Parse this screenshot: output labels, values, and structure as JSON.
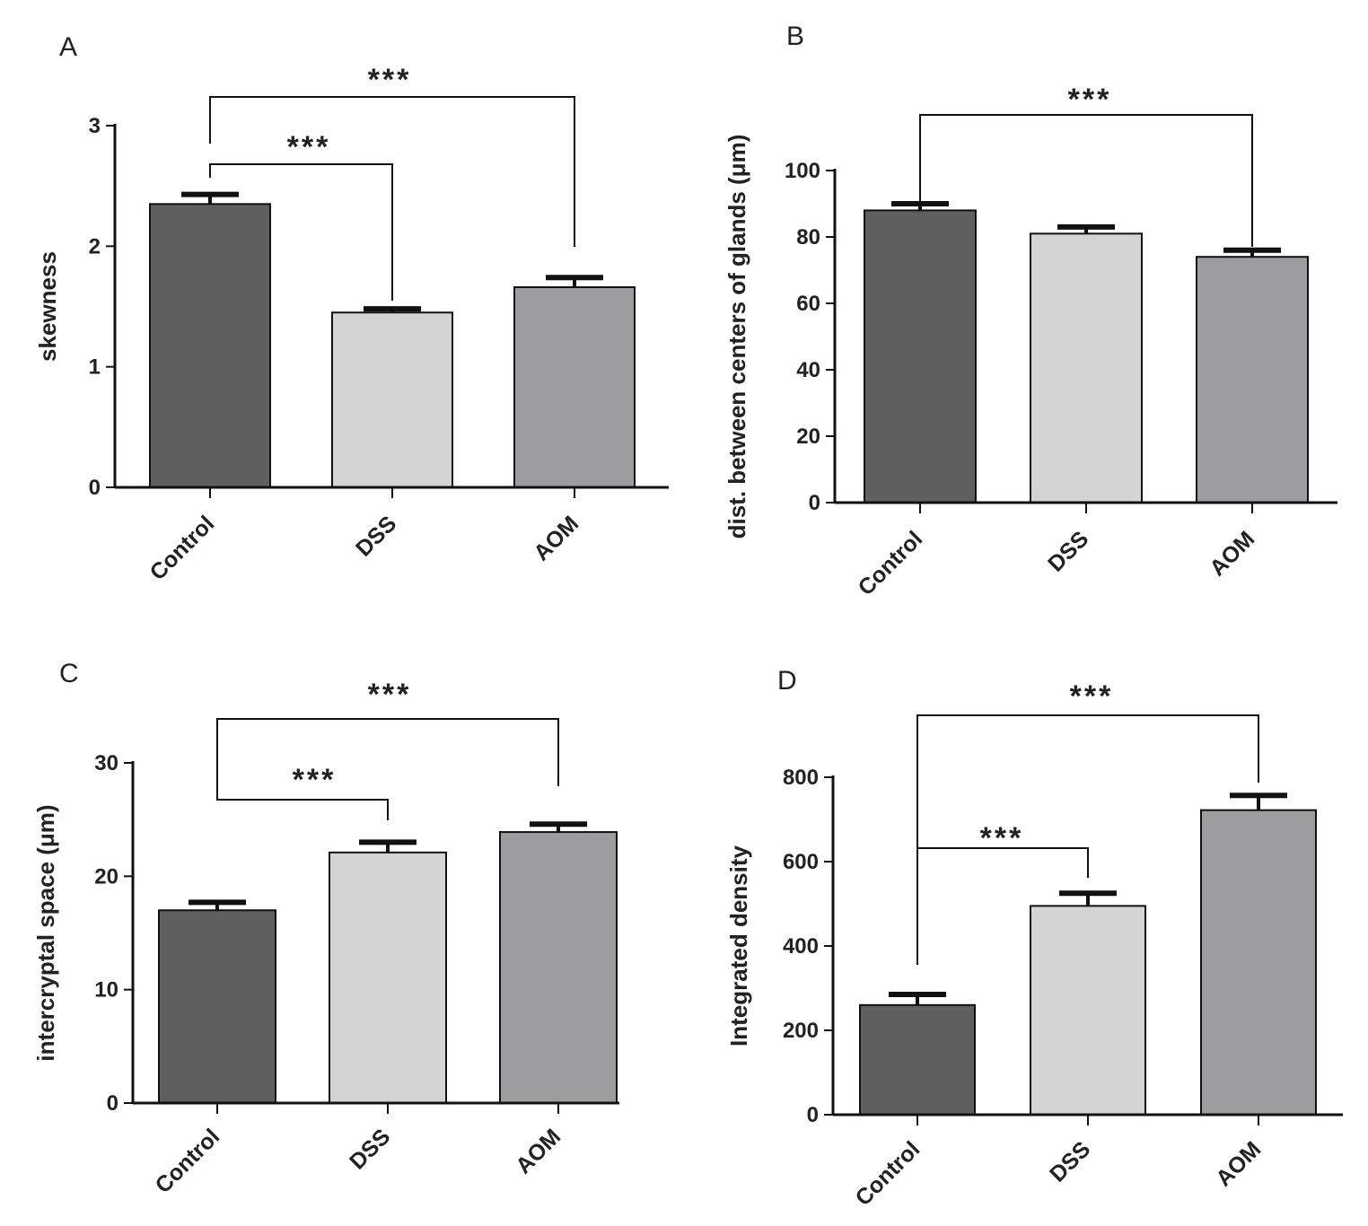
{
  "figure": {
    "panels": [
      "A",
      "B",
      "C",
      "D"
    ]
  },
  "chart_data": [
    {
      "panel": "A",
      "type": "bar",
      "categories": [
        "Control",
        "DSS",
        "AOM"
      ],
      "values": [
        2.35,
        1.45,
        1.66
      ],
      "errors": [
        0.08,
        0.03,
        0.08
      ],
      "colors": [
        "#5f5f5f",
        "#d4d4d4",
        "#9d9da0"
      ],
      "xlabel": "",
      "ylabel": "skewness",
      "ylim": [
        0,
        3
      ],
      "yticks": [
        "0",
        "1",
        "2",
        "3"
      ],
      "significance": [
        {
          "from": "Control",
          "to": "DSS",
          "label": "***"
        },
        {
          "from": "Control",
          "to": "AOM",
          "label": "***"
        }
      ]
    },
    {
      "panel": "B",
      "type": "bar",
      "categories": [
        "Control",
        "DSS",
        "AOM"
      ],
      "values": [
        88,
        81,
        74
      ],
      "errors": [
        2,
        2,
        2
      ],
      "colors": [
        "#5f5f5f",
        "#d4d4d4",
        "#9d9da0"
      ],
      "xlabel": "",
      "ylabel": "dist. between  centers of glands (μm)",
      "ylim": [
        0,
        100
      ],
      "yticks": [
        "0",
        "20",
        "40",
        "60",
        "80",
        "100"
      ],
      "significance": [
        {
          "from": "Control",
          "to": "AOM",
          "label": "***"
        }
      ]
    },
    {
      "panel": "C",
      "type": "bar",
      "categories": [
        "Control",
        "DSS",
        "AOM"
      ],
      "values": [
        17,
        22.1,
        23.9
      ],
      "errors": [
        0.7,
        0.9,
        0.7
      ],
      "colors": [
        "#5f5f5f",
        "#d4d4d4",
        "#9d9da0"
      ],
      "xlabel": "",
      "ylabel": "intercryptal space (μm)",
      "ylim": [
        0,
        30
      ],
      "yticks": [
        "0",
        "10",
        "20",
        "30"
      ],
      "significance": [
        {
          "from": "Control",
          "to": "DSS",
          "label": "***"
        },
        {
          "from": "Control",
          "to": "AOM",
          "label": "***"
        }
      ]
    },
    {
      "panel": "D",
      "type": "bar",
      "categories": [
        "Control",
        "DSS",
        "AOM"
      ],
      "values": [
        260,
        495,
        722
      ],
      "errors": [
        25,
        30,
        35
      ],
      "colors": [
        "#5f5f5f",
        "#d4d4d4",
        "#9d9da0"
      ],
      "xlabel": "",
      "ylabel": "Integrated density",
      "ylim": [
        0,
        800
      ],
      "yticks": [
        "0",
        "200",
        "400",
        "600",
        "800"
      ],
      "significance": [
        {
          "from": "Control",
          "to": "DSS",
          "label": "***"
        },
        {
          "from": "Control",
          "to": "AOM",
          "label": "***"
        }
      ]
    }
  ]
}
